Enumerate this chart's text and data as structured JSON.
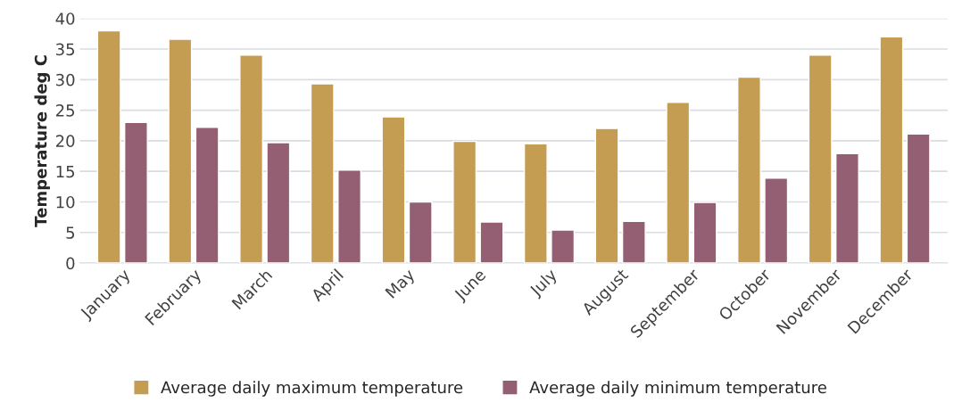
{
  "chart_data": {
    "type": "bar",
    "ylabel": "Temperature deg C",
    "categories": [
      "January",
      "February",
      "March",
      "April",
      "May",
      "June",
      "July",
      "August",
      "September",
      "October",
      "November",
      "December"
    ],
    "series": [
      {
        "name": "Average daily maximum temperature",
        "color": "#c49c52",
        "values": [
          38,
          36.6,
          34,
          29.3,
          23.9,
          19.9,
          19.5,
          22,
          26.3,
          30.4,
          34,
          37
        ]
      },
      {
        "name": "Average daily minimum temperature",
        "color": "#945f73",
        "values": [
          23,
          22.2,
          19.7,
          15.2,
          10,
          6.7,
          5.4,
          6.8,
          9.9,
          13.9,
          17.9,
          21.1
        ]
      }
    ],
    "ylim": [
      0,
      40
    ],
    "yticks": [
      0,
      5,
      10,
      15,
      20,
      25,
      30,
      35,
      40
    ],
    "grid": "y",
    "legend": "bottom"
  }
}
